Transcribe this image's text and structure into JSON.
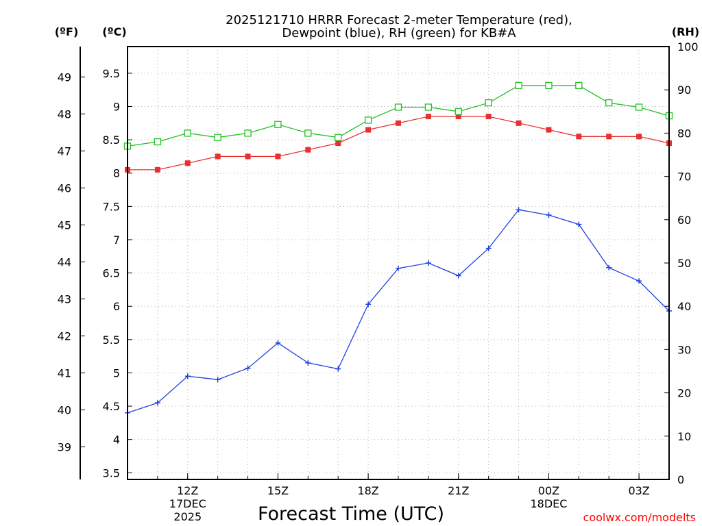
{
  "chart_data": {
    "type": "line",
    "title": [
      "2025121710 HRRR Forecast 2-meter Temperature (red),",
      "Dewpoint (blue), RH (green) for KB#A"
    ],
    "xlabel": "Forecast Time (UTC)",
    "credit": "coolwx.com/modelts",
    "units": {
      "fahrenheit": "(ºF)",
      "celsius": "(ºC)",
      "rh": "(RH)"
    },
    "x_hours_utc": [
      10,
      11,
      12,
      13,
      14,
      15,
      16,
      17,
      18,
      19,
      20,
      21,
      22,
      23,
      24,
      25,
      26,
      27,
      28
    ],
    "x_range": [
      10,
      28
    ],
    "x_ticks": [
      {
        "hour": 12,
        "lines": [
          "12Z",
          "17DEC",
          "2025"
        ]
      },
      {
        "hour": 15,
        "lines": [
          "15Z"
        ]
      },
      {
        "hour": 18,
        "lines": [
          "18Z"
        ]
      },
      {
        "hour": 21,
        "lines": [
          "21Z"
        ]
      },
      {
        "hour": 24,
        "lines": [
          "00Z",
          "18DEC"
        ]
      },
      {
        "hour": 27,
        "lines": [
          "03Z"
        ]
      }
    ],
    "celsius_axis": {
      "range": [
        3.4,
        9.9
      ],
      "ticks": [
        3.5,
        4,
        4.5,
        5,
        5.5,
        6,
        6.5,
        7,
        7.5,
        8,
        8.5,
        9,
        9.5
      ],
      "tick_labels": [
        "3.5",
        "4",
        "4.5",
        "5",
        "5.5",
        "6",
        "6.5",
        "7",
        "7.5",
        "8",
        "8.5",
        "9",
        "9.5"
      ]
    },
    "fahrenheit_axis": {
      "ticks": [
        39,
        40,
        41,
        42,
        43,
        44,
        45,
        46,
        47,
        48,
        49
      ],
      "tick_labels": [
        "39",
        "40",
        "41",
        "42",
        "43",
        "44",
        "45",
        "46",
        "47",
        "48",
        "49"
      ]
    },
    "rh_axis": {
      "range": [
        0,
        100
      ],
      "ticks": [
        0,
        10,
        20,
        30,
        40,
        50,
        60,
        70,
        80,
        90,
        100
      ],
      "tick_labels": [
        "0",
        "10",
        "20",
        "30",
        "40",
        "50",
        "60",
        "70",
        "80",
        "90",
        "100"
      ]
    },
    "series": [
      {
        "name": "2-meter Temperature",
        "axis": "celsius",
        "color": "#e83030",
        "marker": "filled-square",
        "values": [
          8.05,
          8.05,
          8.15,
          8.25,
          8.25,
          8.25,
          8.35,
          8.45,
          8.65,
          8.75,
          8.85,
          8.85,
          8.85,
          8.75,
          8.65,
          8.55,
          8.55,
          8.55,
          8.45
        ]
      },
      {
        "name": "Dewpoint",
        "axis": "celsius",
        "color": "#2040e0",
        "marker": "plus",
        "values": [
          4.4,
          4.55,
          4.95,
          4.9,
          5.07,
          5.45,
          5.15,
          5.06,
          6.03,
          6.57,
          6.65,
          6.46,
          6.87,
          7.45,
          7.37,
          7.23,
          6.58,
          6.38,
          5.93
        ]
      },
      {
        "name": "RH",
        "axis": "rh",
        "color": "#20c020",
        "marker": "open-square",
        "values": [
          77,
          78,
          80,
          79,
          80,
          82,
          80,
          79,
          83,
          86,
          86,
          85,
          87,
          91,
          91,
          91,
          87,
          86,
          84
        ]
      }
    ]
  }
}
